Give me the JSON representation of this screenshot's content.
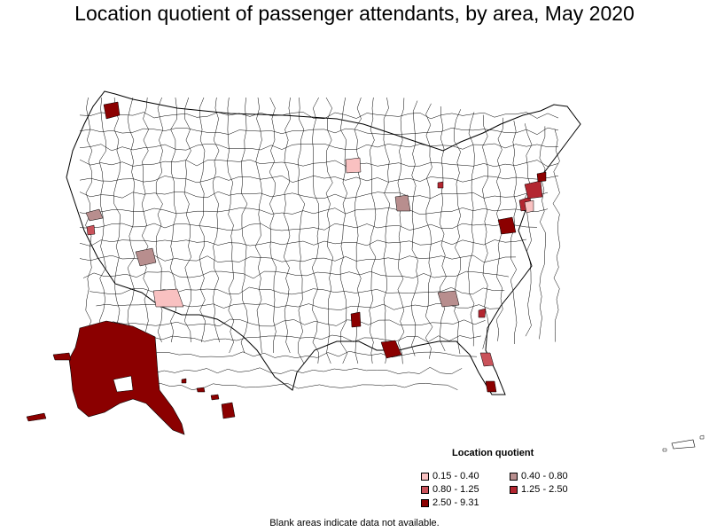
{
  "title": "Location quotient of passenger attendants, by area, May 2020",
  "legend": {
    "title": "Location quotient",
    "items": [
      {
        "label": "0.15 - 0.40",
        "color": "#f9c1c1"
      },
      {
        "label": "0.40 - 0.80",
        "color": "#b88e8e"
      },
      {
        "label": "0.80 - 1.25",
        "color": "#c9525a"
      },
      {
        "label": "1.25 - 2.50",
        "color": "#b32630"
      },
      {
        "label": "2.50 - 9.31",
        "color": "#8b0000"
      }
    ]
  },
  "footnote": "Blank areas indicate data not available.",
  "colors": {
    "background": "#ffffff",
    "border": "#000000",
    "blank_area": "#ffffff"
  }
}
